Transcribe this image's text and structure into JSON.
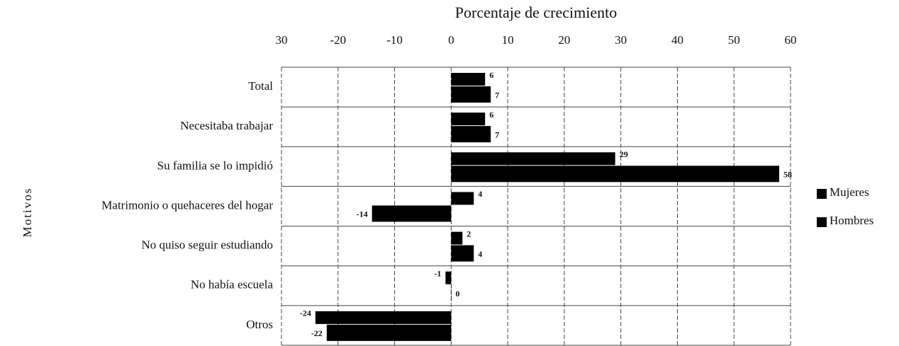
{
  "chart_data": {
    "type": "hbar",
    "title": "Porcentaje de crecimiento",
    "ylabel": "Motivos",
    "categories": [
      "Total",
      "Necesitaba trabajar",
      "Su familia  se lo impidió",
      "Matrimonio o quehaceres  del  hogar",
      "No quiso seguir estudiando",
      "No había escuela",
      "Otros"
    ],
    "series": [
      {
        "name": "Mujeres",
        "color": "#000000",
        "values": [
          6,
          6,
          29,
          4,
          2,
          -1,
          -24
        ]
      },
      {
        "name": "Hombres",
        "color": "#000000",
        "values": [
          7,
          7,
          58,
          -14,
          4,
          0,
          -22
        ]
      }
    ],
    "xlim": [
      -30,
      60
    ],
    "xticks": [
      {
        "value": -30,
        "label": "30"
      },
      -20,
      -10,
      0,
      10,
      20,
      30,
      40,
      50,
      60
    ],
    "grid": true,
    "legend": "right"
  }
}
